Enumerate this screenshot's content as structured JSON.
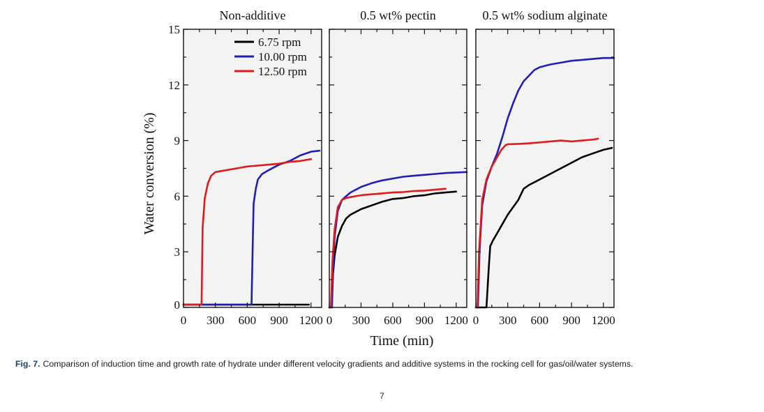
{
  "chart_data": [
    {
      "type": "line",
      "title": "Non-additive",
      "xlabel": "Time (min)",
      "ylabel": "Water conversion (%)",
      "xlim": [
        0,
        1300
      ],
      "ylim": [
        0,
        15
      ],
      "xticks": [
        "0",
        "300",
        "600",
        "900",
        "1200"
      ],
      "yticks": [
        "0",
        "3",
        "6",
        "9",
        "12",
        "15"
      ],
      "legend": {
        "position": "top-right",
        "entries": [
          "6.75 rpm",
          "10.00 rpm",
          "12.50 rpm"
        ]
      },
      "series": [
        {
          "name": "6.75 rpm",
          "color": "#000000",
          "x": [
            0,
            300,
            600,
            900,
            1180
          ],
          "y": [
            0.15,
            0.15,
            0.15,
            0.15,
            0.15
          ]
        },
        {
          "name": "10.00 rpm",
          "color": "#1f1fb4",
          "x": [
            0,
            640,
            650,
            660,
            680,
            700,
            740,
            800,
            900,
            1000,
            1100,
            1200,
            1280
          ],
          "y": [
            0.15,
            0.15,
            3.0,
            5.6,
            6.4,
            6.9,
            7.2,
            7.4,
            7.7,
            7.9,
            8.2,
            8.4,
            8.45
          ]
        },
        {
          "name": "12.50 rpm",
          "color": "#e01b1b",
          "x": [
            0,
            170,
            180,
            200,
            230,
            260,
            300,
            400,
            500,
            600,
            700,
            800,
            900,
            1000,
            1100,
            1200
          ],
          "y": [
            0.15,
            0.15,
            4.3,
            5.9,
            6.7,
            7.1,
            7.3,
            7.4,
            7.5,
            7.6,
            7.65,
            7.7,
            7.75,
            7.85,
            7.9,
            8.0
          ]
        }
      ]
    },
    {
      "type": "line",
      "title": "0.5 wt% pectin",
      "xlim": [
        0,
        1300
      ],
      "ylim": [
        0,
        15
      ],
      "xticks": [
        "0",
        "300",
        "600",
        "900",
        "1200"
      ],
      "series": [
        {
          "name": "6.75 rpm",
          "color": "#000000",
          "x": [
            0,
            20,
            35,
            50,
            80,
            120,
            160,
            200,
            300,
            400,
            500,
            600,
            700,
            800,
            900,
            1000,
            1100,
            1200
          ],
          "y": [
            0,
            0,
            1.8,
            2.8,
            3.8,
            4.4,
            4.8,
            5.0,
            5.3,
            5.5,
            5.7,
            5.85,
            5.9,
            6.0,
            6.05,
            6.15,
            6.2,
            6.25
          ]
        },
        {
          "name": "10.00 rpm",
          "color": "#1f1fb4",
          "x": [
            0,
            25,
            35,
            50,
            80,
            120,
            160,
            200,
            300,
            400,
            500,
            600,
            700,
            800,
            900,
            1000,
            1100,
            1200,
            1300
          ],
          "y": [
            0,
            0,
            2.0,
            3.8,
            5.2,
            5.8,
            6.0,
            6.2,
            6.5,
            6.7,
            6.85,
            6.95,
            7.05,
            7.1,
            7.15,
            7.2,
            7.25,
            7.28,
            7.3
          ]
        },
        {
          "name": "12.50 rpm",
          "color": "#e01b1b",
          "x": [
            0,
            15,
            30,
            50,
            80,
            120,
            160,
            200,
            300,
            400,
            500,
            600,
            700,
            800,
            900,
            1000,
            1100
          ],
          "y": [
            0,
            0,
            2.5,
            4.2,
            5.4,
            5.8,
            5.9,
            5.95,
            6.05,
            6.1,
            6.15,
            6.2,
            6.22,
            6.28,
            6.3,
            6.35,
            6.4
          ]
        }
      ]
    },
    {
      "type": "line",
      "title": "0.5 wt% sodium alginate",
      "xlim": [
        0,
        1300
      ],
      "ylim": [
        0,
        15
      ],
      "xticks": [
        "0",
        "300",
        "600",
        "900",
        "1200"
      ],
      "series": [
        {
          "name": "6.75 rpm",
          "color": "#000000",
          "x": [
            0,
            100,
            120,
            135,
            160,
            200,
            250,
            300,
            350,
            400,
            450,
            500,
            600,
            700,
            800,
            900,
            1000,
            1100,
            1200,
            1280
          ],
          "y": [
            0,
            0,
            2.0,
            3.3,
            3.6,
            4.0,
            4.5,
            5.0,
            5.4,
            5.8,
            6.4,
            6.6,
            6.9,
            7.2,
            7.5,
            7.8,
            8.1,
            8.3,
            8.5,
            8.6
          ]
        },
        {
          "name": "10.00 rpm",
          "color": "#1f1fb4",
          "x": [
            0,
            20,
            35,
            60,
            100,
            150,
            200,
            250,
            300,
            350,
            400,
            450,
            500,
            550,
            600,
            700,
            800,
            900,
            1000,
            1100,
            1200,
            1300
          ],
          "y": [
            0,
            0,
            3.0,
            5.5,
            6.8,
            7.6,
            8.3,
            9.2,
            10.2,
            11.0,
            11.7,
            12.2,
            12.5,
            12.8,
            12.95,
            13.1,
            13.2,
            13.3,
            13.35,
            13.4,
            13.45,
            13.45
          ]
        },
        {
          "name": "12.50 rpm",
          "color": "#e01b1b",
          "x": [
            0,
            15,
            30,
            60,
            100,
            150,
            200,
            240,
            280,
            300,
            400,
            500,
            600,
            700,
            800,
            900,
            1000,
            1100,
            1150
          ],
          "y": [
            0,
            0,
            3.0,
            5.8,
            6.9,
            7.6,
            8.1,
            8.5,
            8.75,
            8.8,
            8.82,
            8.85,
            8.9,
            8.95,
            9.0,
            8.95,
            9.0,
            9.05,
            9.1
          ]
        }
      ]
    }
  ],
  "caption": {
    "label": "Fig. 7.",
    "text": "Comparison of induction time and growth rate of hydrate under different velocity gradients and additive systems in the rocking cell for gas/oil/water systems."
  },
  "page_number": "7"
}
